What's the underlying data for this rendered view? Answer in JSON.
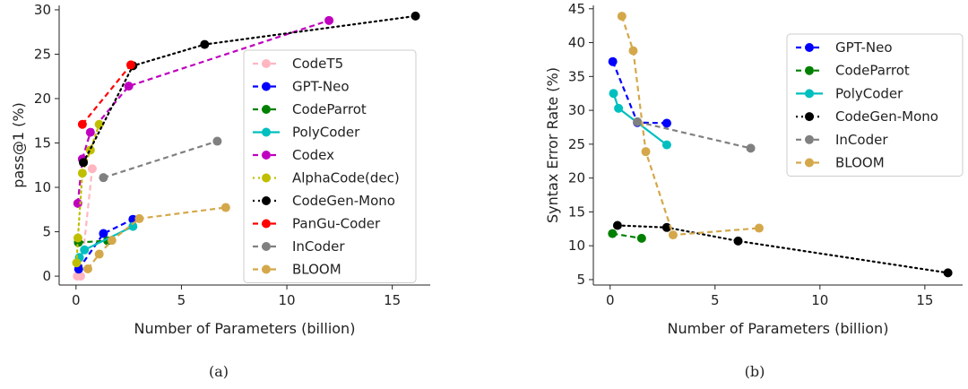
{
  "chart_data": [
    {
      "type": "line",
      "caption": "(a)",
      "xlabel": "Number of Parameters (billion)",
      "ylabel": "pass@1 (%)",
      "xlim": [
        -0.8,
        16.8
      ],
      "ylim": [
        -1,
        30.5
      ],
      "xticks": [
        0,
        5,
        10,
        15
      ],
      "yticks": [
        0,
        5,
        10,
        15,
        20,
        25,
        30
      ],
      "legend_position": "right",
      "series": [
        {
          "name": "CodeT5",
          "color": "#ffb6c1",
          "dash": "6,4",
          "x": [
            0.06,
            0.22,
            0.77
          ],
          "y": [
            0,
            0,
            12.1
          ]
        },
        {
          "name": "GPT-Neo",
          "color": "#0000ff",
          "dash": "6,4",
          "x": [
            0.125,
            1.3,
            2.7
          ],
          "y": [
            0.8,
            4.8,
            6.4
          ]
        },
        {
          "name": "CodeParrot",
          "color": "#008000",
          "dash": "6,4",
          "x": [
            0.11,
            1.5
          ],
          "y": [
            3.8,
            3.99
          ]
        },
        {
          "name": "PolyCoder",
          "color": "#00bfbf",
          "dash": "",
          "x": [
            0.16,
            0.4,
            2.7
          ],
          "y": [
            2.1,
            2.96,
            5.6
          ]
        },
        {
          "name": "Codex",
          "color": "#bf00bf",
          "dash": "6,4",
          "x": [
            0.085,
            0.3,
            0.68,
            2.5,
            12
          ],
          "y": [
            8.2,
            13.2,
            16.2,
            21.4,
            28.8
          ]
        },
        {
          "name": "AlphaCode(dec)",
          "color": "#bfbf00",
          "dash": "2,4",
          "x": [
            0.03,
            0.09,
            0.3,
            0.68,
            1.1
          ],
          "y": [
            1.5,
            4.3,
            11.6,
            14.2,
            17.1
          ]
        },
        {
          "name": "CodeGen-Mono",
          "color": "#000000",
          "dash": "2,4",
          "x": [
            0.35,
            2.7,
            6.1,
            16.1
          ],
          "y": [
            12.8,
            23.7,
            26.1,
            29.3
          ]
        },
        {
          "name": "PanGu-Coder",
          "color": "#ff0000",
          "dash": "6,4",
          "x": [
            0.3,
            2.6
          ],
          "y": [
            17.1,
            23.8
          ]
        },
        {
          "name": "InCoder",
          "color": "#808080",
          "dash": "6,4",
          "x": [
            1.3,
            6.7
          ],
          "y": [
            11.1,
            15.2
          ]
        },
        {
          "name": "BLOOM",
          "color": "#d4a84a",
          "dash": "6,4",
          "x": [
            0.56,
            1.1,
            1.7,
            3,
            7.1
          ],
          "y": [
            0.82,
            2.48,
            4.03,
            6.48,
            7.73
          ]
        }
      ]
    },
    {
      "type": "line",
      "caption": "(b)",
      "xlabel": "Number of Parameters (billion)",
      "ylabel": "Syntax Error Rate (%)",
      "xlim": [
        -0.8,
        16.8
      ],
      "ylim": [
        4.2,
        45.5
      ],
      "xticks": [
        0,
        5,
        10,
        15
      ],
      "yticks": [
        5,
        10,
        15,
        20,
        25,
        30,
        35,
        40,
        45
      ],
      "legend_position": "top-right",
      "series": [
        {
          "name": "GPT-Neo",
          "color": "#0000ff",
          "dash": "6,4",
          "x": [
            0.125,
            1.3,
            2.7
          ],
          "y": [
            37.2,
            28.2,
            28.1
          ]
        },
        {
          "name": "CodeParrot",
          "color": "#008000",
          "dash": "6,4",
          "x": [
            0.11,
            1.5
          ],
          "y": [
            11.8,
            11.1
          ]
        },
        {
          "name": "PolyCoder",
          "color": "#00bfbf",
          "dash": "",
          "x": [
            0.16,
            0.4,
            2.7
          ],
          "y": [
            32.5,
            30.3,
            24.9
          ]
        },
        {
          "name": "CodeGen-Mono",
          "color": "#000000",
          "dash": "2,4",
          "x": [
            0.35,
            2.7,
            6.1,
            16.1
          ],
          "y": [
            13,
            12.7,
            10.7,
            6
          ]
        },
        {
          "name": "InCoder",
          "color": "#808080",
          "dash": "6,4",
          "x": [
            1.3,
            6.7
          ],
          "y": [
            28.3,
            24.4
          ]
        },
        {
          "name": "BLOOM",
          "color": "#d4a84a",
          "dash": "6,4",
          "x": [
            0.56,
            1.1,
            1.7,
            3,
            7.1
          ],
          "y": [
            43.9,
            38.8,
            23.9,
            11.6,
            12.6
          ]
        }
      ]
    }
  ]
}
